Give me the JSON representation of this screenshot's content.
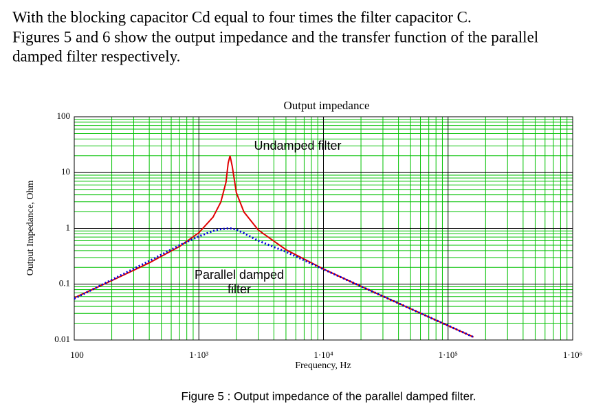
{
  "document": {
    "paragraph": [
      "With the blocking capacitor Cd equal to four times the filter capacitor C.",
      "Figures 5 and 6 show the output impedance and the transfer function of the parallel",
      "damped filter respectively."
    ],
    "caption": "Figure 5 : Output impedance of the parallel damped filter."
  },
  "chart_data": {
    "type": "line",
    "title": "Output impedance",
    "xlabel": "Frequency, Hz",
    "ylabel": "Output Impedance, Ohm",
    "x": [
      100,
      200,
      400,
      700,
      1000,
      1300,
      1500,
      1650,
      1720,
      1780,
      1850,
      2000,
      2300,
      3000,
      5000,
      10000,
      20000,
      50000,
      100000,
      160000
    ],
    "series": [
      {
        "name": "Undamped filter",
        "color": "#e00000",
        "style": "solid",
        "values": [
          0.057,
          0.116,
          0.241,
          0.474,
          0.836,
          1.59,
          2.96,
          6.7,
          14.8,
          20,
          13.2,
          4.36,
          1.97,
          0.933,
          0.415,
          0.187,
          0.0914,
          0.0363,
          0.0181,
          0.0113
        ]
      },
      {
        "name": "Parallel damped filter",
        "color": "#0000e0",
        "style": "dotted",
        "values": [
          0.055,
          0.12,
          0.26,
          0.5,
          0.72,
          0.9,
          0.97,
          0.99,
          1.0,
          1.0,
          0.99,
          0.95,
          0.82,
          0.6,
          0.38,
          0.185,
          0.0914,
          0.0363,
          0.0181,
          0.0113
        ]
      }
    ],
    "annotations": [
      "Undamped filter",
      "Parallel damped",
      "filter"
    ],
    "xlog": true,
    "ylog": true,
    "grid": true,
    "minor_grid": true,
    "xlim": [
      100,
      1000000
    ],
    "ylim": [
      0.01,
      100
    ],
    "xticks": [
      100,
      {
        "value": 1000,
        "label": "1·10³"
      },
      {
        "value": 10000,
        "label": "1·10⁴"
      },
      {
        "value": 100000,
        "label": "1·10⁵"
      },
      {
        "value": 1000000,
        "label": "1·10⁶"
      }
    ],
    "yticks": [
      0.01,
      0.1,
      1,
      10,
      100
    ]
  }
}
